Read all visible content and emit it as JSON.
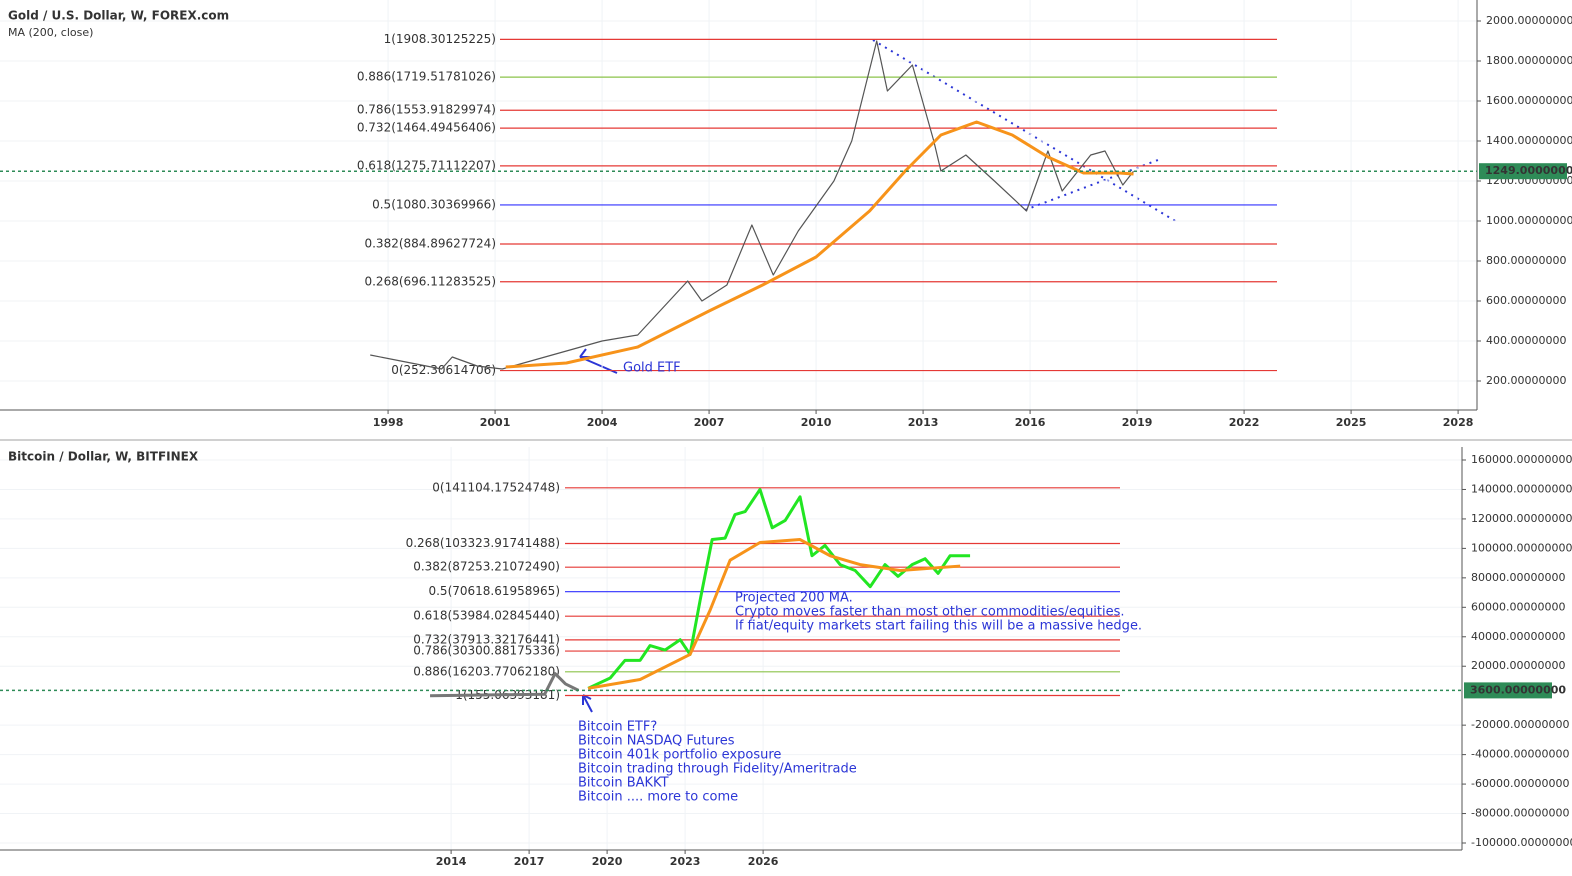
{
  "chart_data": [
    {
      "type": "line",
      "title": "Gold / U.S. Dollar, W, FOREX.com",
      "subtitle": "MA (200, close)",
      "xlim": [
        1987.12,
        2028.53
      ],
      "ylim": [
        55,
        2105
      ],
      "xticks": [
        1998,
        2001,
        2004,
        2007,
        2010,
        2013,
        2016,
        2019,
        2022,
        2025,
        2028
      ],
      "yticks": [
        {
          "value": 200,
          "label": "200.00000000"
        },
        {
          "value": 400,
          "label": "400.00000000"
        },
        {
          "value": 600,
          "label": "600.00000000"
        },
        {
          "value": 800,
          "label": "800.00000000"
        },
        {
          "value": 1000,
          "label": "1000.00000000"
        },
        {
          "value": 1200,
          "label": "1200.00000000"
        },
        {
          "value": 1400,
          "label": "1400.00000000"
        },
        {
          "value": 1600,
          "label": "1600.00000000"
        },
        {
          "value": 1800,
          "label": "1800.00000000"
        },
        {
          "value": 2000,
          "label": "2000.00000000"
        }
      ],
      "grid": true,
      "levels": [
        {
          "label": "1(1908.30125225)",
          "value": 1908.30125225,
          "color": "#e53935"
        },
        {
          "label": "0.886(1719.51781026)",
          "value": 1719.51781026,
          "color": "#8bc34a"
        },
        {
          "label": "0.786(1553.91829974)",
          "value": 1553.91829974,
          "color": "#e53935"
        },
        {
          "label": "0.732(1464.49456406)",
          "value": 1464.49456406,
          "color": "#e53935"
        },
        {
          "label": "0.618(1275.71112207)",
          "value": 1275.71112207,
          "color": "#e53935"
        },
        {
          "label": "0.5(1080.30369966)",
          "value": 1080.30369966,
          "color": "#3030ff"
        },
        {
          "label": "0.382(884.89627724)",
          "value": 884.89627724,
          "color": "#e53935"
        },
        {
          "label": "0.268(696.11283525)",
          "value": 696.11283525,
          "color": "#e53935"
        },
        {
          "label": "0(252.30614706)",
          "value": 252.30614706,
          "color": "#e53935"
        }
      ],
      "series": [
        {
          "color": "#555555",
          "x": [
            1997.5,
            1998.5,
            1999.5,
            1999.8,
            2000.5,
            2001.2,
            2002,
            2003,
            2004,
            2005,
            2006.4,
            2006.8,
            2007.5,
            2008.2,
            2008.8,
            2009.5,
            2010.5,
            2011,
            2011.7,
            2012,
            2012.7,
            2013.3,
            2013.5,
            2014.2,
            2015,
            2015.9,
            2016.5,
            2016.9,
            2017.7,
            2018.1,
            2018.6,
            2018.9
          ],
          "values": [
            330,
            295,
            260,
            320,
            275,
            260,
            300,
            350,
            400,
            430,
            700,
            600,
            680,
            980,
            730,
            950,
            1200,
            1400,
            1900,
            1650,
            1780,
            1400,
            1250,
            1330,
            1200,
            1050,
            1350,
            1150,
            1330,
            1350,
            1180,
            1249
          ]
        },
        {
          "color": "#f7931a",
          "x": [
            2001.3,
            2003,
            2005,
            2007,
            2008.5,
            2010,
            2011.5,
            2012.5,
            2013.5,
            2014.5,
            2015.5,
            2016.5,
            2017.5,
            2018.5,
            2018.9
          ],
          "values": [
            270,
            290,
            370,
            550,
            680,
            820,
            1050,
            1250,
            1430,
            1495,
            1430,
            1320,
            1240,
            1240,
            1235
          ]
        }
      ],
      "price_line": {
        "value": 1249,
        "label": "1249.00000000",
        "color": "#2e8b57"
      },
      "annotations": [
        {
          "lines": [
            "Gold ETF"
          ]
        }
      ]
    },
    {
      "type": "line",
      "title": "Bitcoin / Dollar, W, BITFINEX",
      "xlim": [
        1996.65,
        2052.88
      ],
      "ylim": [
        -104752,
        168826
      ],
      "xticks": [
        2014,
        2017,
        2020,
        2023,
        2026
      ],
      "yticks": [
        {
          "value": 160000,
          "label": "160000.00000000"
        },
        {
          "value": 140000,
          "label": "140000.00000000"
        },
        {
          "value": 120000,
          "label": "120000.00000000"
        },
        {
          "value": 100000,
          "label": "100000.00000000"
        },
        {
          "value": 80000,
          "label": "80000.00000000"
        },
        {
          "value": 60000,
          "label": "60000.00000000"
        },
        {
          "value": 40000,
          "label": "40000.00000000"
        },
        {
          "value": 20000,
          "label": "20000.00000000"
        },
        {
          "value": -20000,
          "label": "-20000.00000000"
        },
        {
          "value": -40000,
          "label": "-40000.00000000"
        },
        {
          "value": -60000,
          "label": "-60000.00000000"
        },
        {
          "value": -80000,
          "label": "-80000.00000000"
        },
        {
          "value": -100000,
          "label": "-100000.00000000"
        }
      ],
      "grid": true,
      "levels": [
        {
          "label": "0(141104.17524748)",
          "value": 141104.17524748,
          "color": "#e53935"
        },
        {
          "label": "0.268(103323.91741488)",
          "value": 103323.91741488,
          "color": "#e53935"
        },
        {
          "label": "0.382(87253.21072490)",
          "value": 87253.2107249,
          "color": "#e53935"
        },
        {
          "label": "0.5(70618.61958965)",
          "value": 70618.61958965,
          "color": "#3030ff"
        },
        {
          "label": "0.618(53984.02845440)",
          "value": 53984.0284544,
          "color": "#e53935"
        },
        {
          "label": "0.732(37913.32176441)",
          "value": 37913.32176441,
          "color": "#e53935"
        },
        {
          "label": "0.786(30300.88175336)",
          "value": 30300.88175336,
          "color": "#e53935"
        },
        {
          "label": "0.886(16203.77062180)",
          "value": 16203.7706218,
          "color": "#8bc34a"
        },
        {
          "label": "1(155.06393181)",
          "value": 155.06393181,
          "color": "#e53935"
        }
      ],
      "series": [
        {
          "color": "#777777",
          "x": [
            2013.19,
            2017.6,
            2018.0,
            2018.4,
            2018.9
          ],
          "values": [
            0,
            1000,
            15000,
            8000,
            3600
          ]
        },
        {
          "color": "#22e622",
          "x": [
            2019.27,
            2020.12,
            2020.69,
            2021.27,
            2021.65,
            2022.23,
            2022.81,
            2023.19,
            2023.58,
            2024.04,
            2024.54,
            2024.92,
            2025.31,
            2025.88,
            2026.35,
            2026.85,
            2027.42,
            2027.88,
            2028.38,
            2028.96,
            2029.54,
            2030.12,
            2030.69,
            2031.19,
            2031.73,
            2032.23,
            2032.73,
            2033.19,
            2033.96
          ],
          "values": [
            5000,
            12000,
            24000,
            24000,
            34000,
            31000,
            38000,
            28000,
            65000,
            106000,
            107000,
            123000,
            125000,
            140000,
            114000,
            119000,
            135000,
            95000,
            102000,
            89000,
            85000,
            74000,
            89000,
            81000,
            89000,
            93000,
            83000,
            95000,
            95000
          ]
        },
        {
          "color": "#f7931a",
          "x": [
            2019.27,
            2021.27,
            2023.19,
            2023.96,
            2024.73,
            2025.88,
            2027.42,
            2028.58,
            2029.73,
            2031.27,
            2033.58
          ],
          "values": [
            5000,
            11000,
            28000,
            58000,
            92000,
            104000,
            106000,
            95000,
            89000,
            85000,
            88000
          ]
        }
      ],
      "price_line": {
        "value": 3600,
        "label": "3600.00000000",
        "color": "#2e8b57"
      },
      "annotations": [
        {
          "lines": [
            "Projected 200 MA.",
            "Crypto moves faster than most other commodities/equities.",
            "If fiat/equity markets start failing this will be a massive hedge."
          ]
        },
        {
          "lines": [
            "Bitcoin ETF?",
            "Bitcoin NASDAQ Futures",
            "Bitcoin 401k portfolio exposure",
            "Bitcoin trading through Fidelity/Ameritrade",
            "Bitcoin BAKKT",
            "Bitcoin .... more to come"
          ]
        }
      ]
    }
  ]
}
